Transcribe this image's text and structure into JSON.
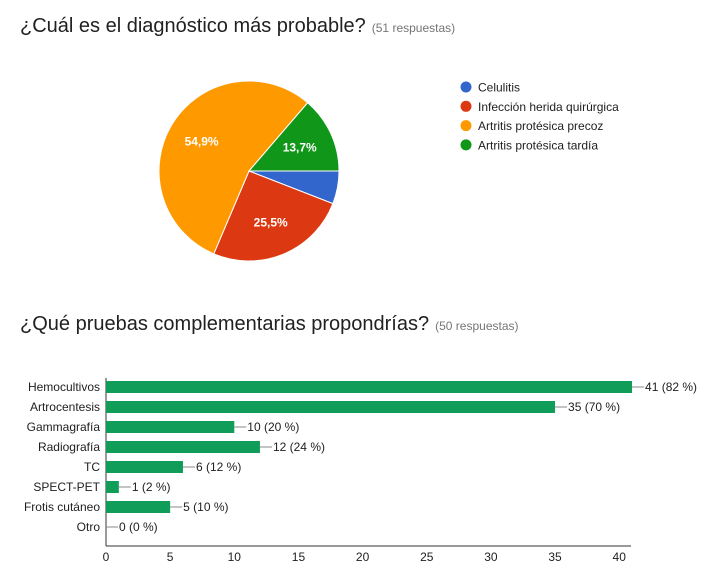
{
  "questions": [
    {
      "title": "¿Cuál es el diagnóstico más probable?",
      "responses": "(51 respuestas)"
    },
    {
      "title": "¿Qué pruebas complementarias propondrías?",
      "responses": "(50 respuestas)"
    }
  ],
  "chart_data": [
    {
      "type": "pie",
      "categories": [
        "Celulitis",
        "Infección herida quirúrgica",
        "Artritis protésica precoz",
        "Artritis protésica tardía"
      ],
      "values": [
        5.9,
        25.5,
        54.9,
        13.7
      ],
      "slice_labels": [
        "",
        "25,5%",
        "54,9%",
        "13,7%"
      ],
      "colors": [
        "#3366cc",
        "#dc3912",
        "#ff9900",
        "#109618"
      ],
      "legend_position": "right"
    },
    {
      "type": "bar",
      "orientation": "horizontal",
      "categories": [
        "Hemocultivos",
        "Artrocentesis",
        "Gammagrafía",
        "Radiografía",
        "TC",
        "SPECT-PET",
        "Frotis cutáneo",
        "Otro"
      ],
      "values": [
        41,
        35,
        10,
        12,
        6,
        1,
        5,
        0
      ],
      "value_labels": [
        "41 (82 %)",
        "35 (70 %)",
        "10 (20 %)",
        "12 (24 %)",
        "6 (12 %)",
        "1 (2 %)",
        "5 (10 %)",
        "0 (0 %)"
      ],
      "xlim": [
        0,
        41
      ],
      "xticks": [
        "0",
        "5",
        "10",
        "15",
        "20",
        "25",
        "30",
        "35",
        "40"
      ],
      "color": "#109d59",
      "grid": false
    }
  ]
}
